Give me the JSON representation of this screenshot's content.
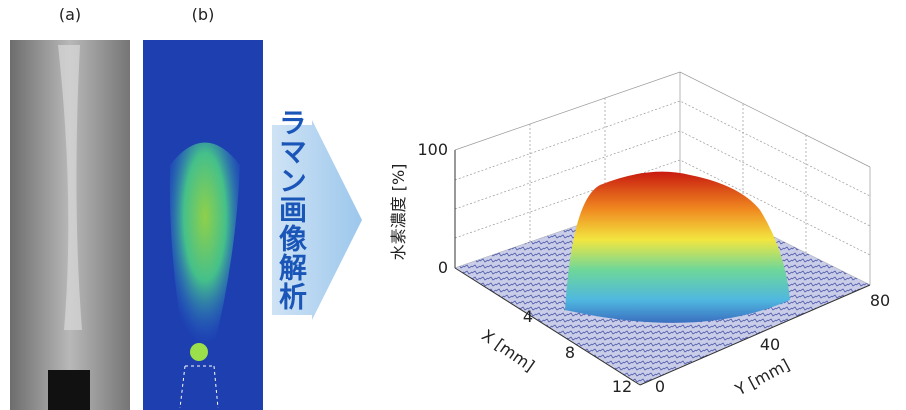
{
  "panels": [
    {
      "label": "(a)"
    },
    {
      "label": "(b)"
    }
  ],
  "arrow_text": "ラマン画像解析",
  "plot": {
    "z_label": "水素濃度 [%]",
    "z_ticks": [
      "100",
      "0"
    ],
    "x_label": "X [mm]",
    "x_ticks": [
      "4",
      "8",
      "12"
    ],
    "y_label": "Y [mm]",
    "y_ticks": [
      "0",
      "40",
      "80"
    ]
  }
}
